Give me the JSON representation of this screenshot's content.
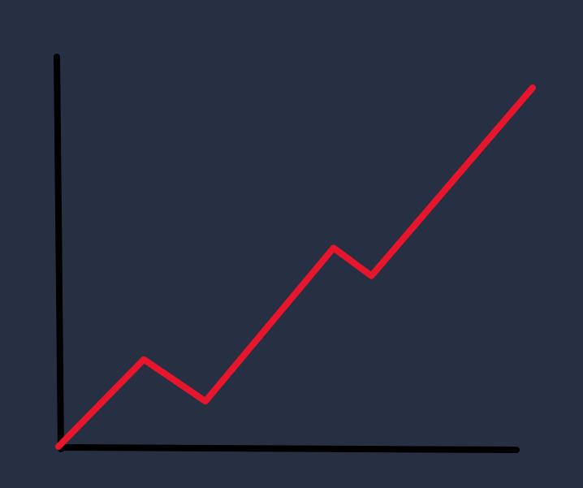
{
  "theme": {
    "background": "#263042",
    "axis_color": "#000000",
    "line_color": "#E8162C"
  },
  "chart_data": {
    "type": "line",
    "title": "",
    "xlabel": "",
    "ylabel": "",
    "grid": false,
    "legend": "none",
    "x": [
      0,
      1.8,
      3.1,
      5.8,
      6.6,
      10
    ],
    "series": [
      {
        "values": [
          0,
          2.5,
          1.3,
          5.7,
          4.9,
          10.3
        ]
      }
    ],
    "xlim": [
      0,
      10
    ],
    "ylim": [
      0,
      10.3
    ]
  }
}
